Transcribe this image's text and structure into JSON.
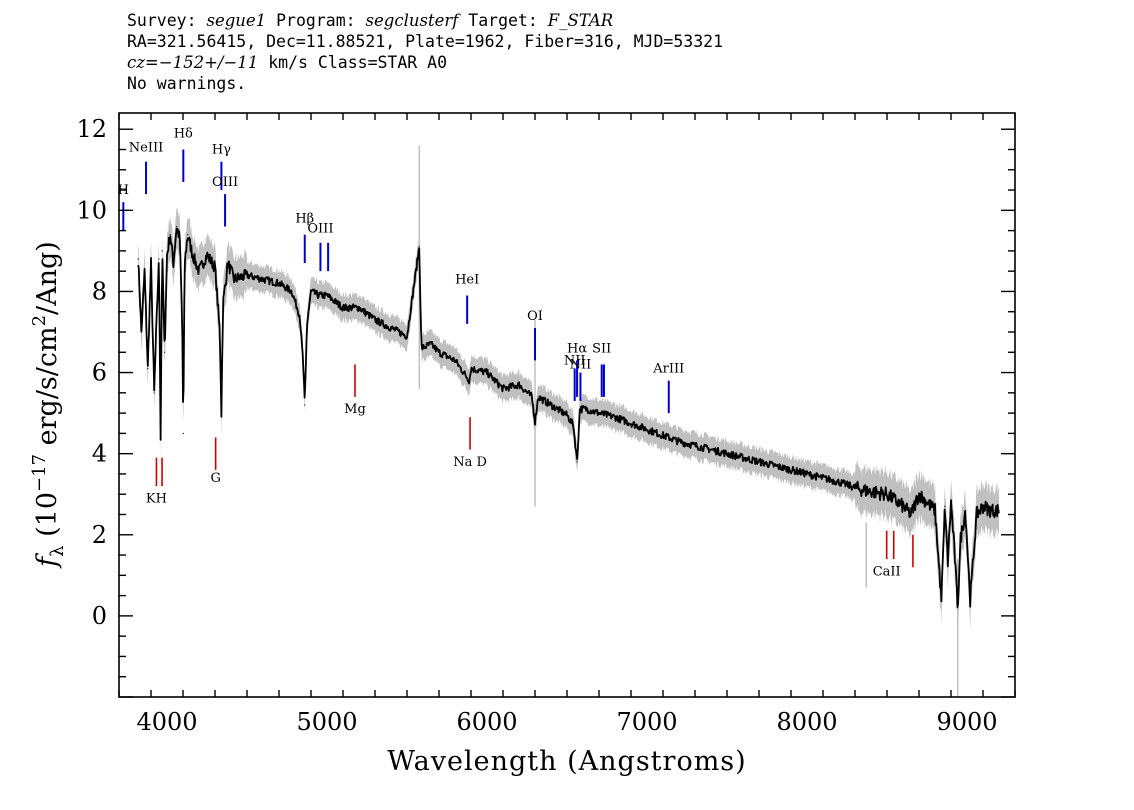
{
  "header": {
    "line1": {
      "survey_label": "Survey:",
      "survey": "segue1",
      "program_label": "Program:",
      "program": "segclusterf",
      "target_label": "Target:",
      "target": "F_STAR"
    },
    "line2": "RA=321.56415, Dec=11.88521, Plate=1962, Fiber=316, MJD=53321",
    "line3": {
      "cz": "cz=−152+/−11",
      "rest": " km/s Class=STAR A0"
    },
    "line4": "No warnings."
  },
  "chart_data": {
    "type": "line",
    "title": "",
    "xlabel": "Wavelength (Angstroms)",
    "ylabel_main": "f",
    "ylabel_sub": "λ",
    "ylabel_rest": " (10",
    "ylabel_exp": "−17",
    "ylabel_units": " erg/s/cm",
    "ylabel_sq": "2",
    "ylabel_tail": "/Ang)",
    "xlim": [
      3700,
      9300
    ],
    "ylim": [
      -2,
      12.4
    ],
    "xticks": [
      4000,
      5000,
      6000,
      7000,
      8000,
      9000
    ],
    "yticks": [
      0,
      2,
      4,
      6,
      8,
      10,
      12
    ],
    "xtick_labels": [
      "4000",
      "5000",
      "6000",
      "7000",
      "8000",
      "9000"
    ],
    "ytick_labels": [
      "0",
      "2",
      "4",
      "6",
      "8",
      "10",
      "12"
    ],
    "series": [
      {
        "role": "flux",
        "color": "#000000",
        "x": [
          3820,
          3840,
          3860,
          3880,
          3900,
          3920,
          3935,
          3950,
          3960,
          3970,
          3985,
          4000,
          4020,
          4040,
          4060,
          4080,
          4095,
          4102,
          4110,
          4130,
          4160,
          4200,
          4250,
          4300,
          4330,
          4340,
          4350,
          4380,
          4420,
          4500,
          4600,
          4700,
          4780,
          4830,
          4850,
          4861,
          4875,
          4900,
          4950,
          5000,
          5100,
          5200,
          5300,
          5400,
          5500,
          5577,
          5590,
          5650,
          5700,
          5800,
          5890,
          5900,
          6000,
          6100,
          6200,
          6280,
          6300,
          6320,
          6400,
          6500,
          6540,
          6563,
          6580,
          6620,
          6700,
          6800,
          7000,
          7200,
          7400,
          7600,
          7800,
          8000,
          8200,
          8350,
          8500,
          8600,
          8650,
          8700,
          8750,
          8800,
          8840,
          8862,
          8880,
          8900,
          8920,
          8942,
          8960,
          8990,
          9020,
          9060,
          9100,
          9150,
          9200
        ],
        "y": [
          8.8,
          7.0,
          8.5,
          6.1,
          8.7,
          5.5,
          7.3,
          8.8,
          4.4,
          9.0,
          6.5,
          8.9,
          9.4,
          8.7,
          9.6,
          9.3,
          7.2,
          4.5,
          8.7,
          9.4,
          8.9,
          8.5,
          8.9,
          8.6,
          7.0,
          5.0,
          7.7,
          8.7,
          8.3,
          8.4,
          8.3,
          8.2,
          8.0,
          7.4,
          6.3,
          5.2,
          7.2,
          8.0,
          7.9,
          7.9,
          7.6,
          7.6,
          7.3,
          7.1,
          6.9,
          9.1,
          6.6,
          6.7,
          6.5,
          6.3,
          5.8,
          6.1,
          6.0,
          5.6,
          5.7,
          5.4,
          4.8,
          5.4,
          5.2,
          4.95,
          4.7,
          3.8,
          5.1,
          5.1,
          5.0,
          4.9,
          4.6,
          4.3,
          4.1,
          3.9,
          3.7,
          3.5,
          3.3,
          3.1,
          3.0,
          2.7,
          2.5,
          3.0,
          2.8,
          2.6,
          0.4,
          2.7,
          1.3,
          2.8,
          1.7,
          0.2,
          1.9,
          2.6,
          0.4,
          2.5,
          2.7,
          2.6,
          2.6
        ]
      }
    ],
    "uncertainty_color": "#c0c0c0",
    "spikes": [
      {
        "x": 5577,
        "y_top": 11.6,
        "y_bottom": 5.6
      },
      {
        "x": 6300,
        "y_top": 7.3,
        "y_bottom": 2.7
      },
      {
        "x": 8370,
        "y_top": 2.3,
        "y_bottom": 0.7
      },
      {
        "x": 8942,
        "y_top": 1.4,
        "y_bottom": -2.0
      }
    ],
    "emission_lines": [
      {
        "label": "H",
        "x": 3727,
        "y_top": 10.2,
        "y_bottom": 9.5,
        "label_y": 10.4
      },
      {
        "label": "NeIII",
        "x": 3869,
        "y_top": 11.2,
        "y_bottom": 10.4,
        "label_y": 11.45
      },
      {
        "label": "Hδ",
        "x": 4102,
        "y_top": 11.5,
        "y_bottom": 10.7,
        "label_y": 11.8
      },
      {
        "label": "Hγ",
        "x": 4340,
        "y_top": 11.2,
        "y_bottom": 10.5,
        "label_y": 11.4
      },
      {
        "label": "OIII",
        "x": 4363,
        "y_top": 10.4,
        "y_bottom": 9.6,
        "label_y": 10.6
      },
      {
        "label": "Hβ",
        "x": 4861,
        "y_top": 9.4,
        "y_bottom": 8.7,
        "label_y": 9.7
      },
      {
        "label": "OIII",
        "x": 4959,
        "y_top": 9.2,
        "y_bottom": 8.5,
        "label_y": 9.45
      },
      {
        "label": "",
        "x": 5007,
        "y_top": 9.2,
        "y_bottom": 8.5,
        "label_y": 9.45
      },
      {
        "label": "HeI",
        "x": 5876,
        "y_top": 7.9,
        "y_bottom": 7.2,
        "label_y": 8.2
      },
      {
        "label": "OI",
        "x": 6300,
        "y_top": 7.1,
        "y_bottom": 6.3,
        "label_y": 7.3
      },
      {
        "label": "NII",
        "x": 6548,
        "y_top": 6.1,
        "y_bottom": 5.3,
        "label_y": 6.2
      },
      {
        "label": "Hα",
        "x": 6563,
        "y_top": 6.3,
        "y_bottom": 5.4,
        "label_y": 6.5
      },
      {
        "label": "NII",
        "x": 6584,
        "y_top": 6.0,
        "y_bottom": 5.3,
        "label_y": 6.1
      },
      {
        "label": "SII",
        "x": 6717,
        "y_top": 6.2,
        "y_bottom": 5.4,
        "label_y": 6.5
      },
      {
        "label": "",
        "x": 6731,
        "y_top": 6.2,
        "y_bottom": 5.4,
        "label_y": 6.5
      },
      {
        "label": "ArIII",
        "x": 7136,
        "y_top": 5.8,
        "y_bottom": 5.0,
        "label_y": 6.0
      }
    ],
    "absorption_lines": [
      {
        "label": "KH",
        "x": 3934,
        "y_top": 3.9,
        "y_bottom": 3.2,
        "label_y": 2.8
      },
      {
        "label": "",
        "x": 3969,
        "y_top": 3.9,
        "y_bottom": 3.2,
        "label_y": 2.8
      },
      {
        "label": "G",
        "x": 4304,
        "y_top": 4.4,
        "y_bottom": 3.6,
        "label_y": 3.3
      },
      {
        "label": "Mg",
        "x": 5175,
        "y_top": 6.2,
        "y_bottom": 5.4,
        "label_y": 5.0
      },
      {
        "label": "Na D",
        "x": 5894,
        "y_top": 4.9,
        "y_bottom": 4.1,
        "label_y": 3.7
      },
      {
        "label": "CaII",
        "x": 8498,
        "y_top": 2.1,
        "y_bottom": 1.4,
        "label_y": 1.0
      },
      {
        "label": "",
        "x": 8542,
        "y_top": 2.1,
        "y_bottom": 1.4,
        "label_y": 1.0
      },
      {
        "label": "",
        "x": 8662,
        "y_top": 2.0,
        "y_bottom": 1.2,
        "label_y": 1.0
      }
    ],
    "emission_color": "#0000cc",
    "absorption_color": "#cc0000",
    "grid": false,
    "legend": "none"
  }
}
